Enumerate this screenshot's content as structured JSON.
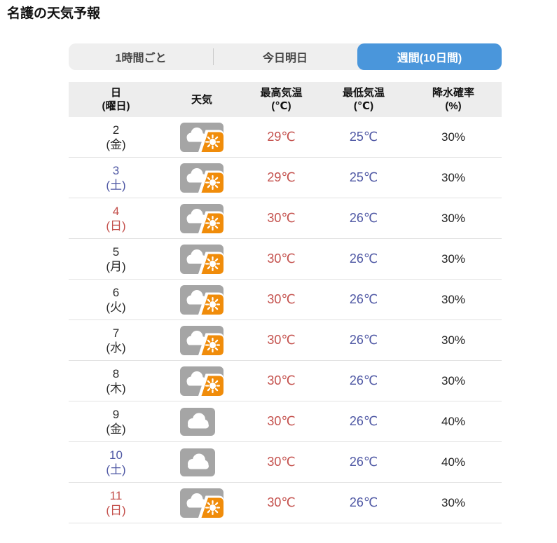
{
  "title": "名護の天気予報",
  "tabs": [
    {
      "label": "1時間ごと",
      "active": false
    },
    {
      "label": "今日明日",
      "active": false
    },
    {
      "label": "週間(10日間)",
      "active": true
    }
  ],
  "table": {
    "columns": [
      {
        "main": "日",
        "sub": "(曜日)"
      },
      {
        "main": "天気",
        "sub": ""
      },
      {
        "main": "最高気温",
        "sub": "(℃)"
      },
      {
        "main": "最低気温",
        "sub": "(℃)"
      },
      {
        "main": "降水確率",
        "sub": "(%)"
      }
    ],
    "rows": [
      {
        "date": "2",
        "weekday": "(金)",
        "day_color": "black",
        "weather_icon": "cloud-sun-icon",
        "high": "29℃",
        "low": "25℃",
        "precip": "30%"
      },
      {
        "date": "3",
        "weekday": "(土)",
        "day_color": "blue",
        "weather_icon": "cloud-sun-icon",
        "high": "29℃",
        "low": "25℃",
        "precip": "30%"
      },
      {
        "date": "4",
        "weekday": "(日)",
        "day_color": "red",
        "weather_icon": "cloud-sun-icon",
        "high": "30℃",
        "low": "26℃",
        "precip": "30%"
      },
      {
        "date": "5",
        "weekday": "(月)",
        "day_color": "black",
        "weather_icon": "cloud-sun-icon",
        "high": "30℃",
        "low": "26℃",
        "precip": "30%"
      },
      {
        "date": "6",
        "weekday": "(火)",
        "day_color": "black",
        "weather_icon": "cloud-sun-icon",
        "high": "30℃",
        "low": "26℃",
        "precip": "30%"
      },
      {
        "date": "7",
        "weekday": "(水)",
        "day_color": "black",
        "weather_icon": "cloud-sun-icon",
        "high": "30℃",
        "low": "26℃",
        "precip": "30%"
      },
      {
        "date": "8",
        "weekday": "(木)",
        "day_color": "black",
        "weather_icon": "cloud-sun-icon",
        "high": "30℃",
        "low": "26℃",
        "precip": "30%"
      },
      {
        "date": "9",
        "weekday": "(金)",
        "day_color": "black",
        "weather_icon": "cloud-icon",
        "high": "30℃",
        "low": "26℃",
        "precip": "40%"
      },
      {
        "date": "10",
        "weekday": "(土)",
        "day_color": "blue",
        "weather_icon": "cloud-icon",
        "high": "30℃",
        "low": "26℃",
        "precip": "40%"
      },
      {
        "date": "11",
        "weekday": "(日)",
        "day_color": "red",
        "weather_icon": "cloud-sun-icon",
        "high": "30℃",
        "low": "26℃",
        "precip": "30%"
      }
    ]
  },
  "palette": {
    "active_tab_bg": "#4a96db",
    "active_tab_text": "#ffffff",
    "red": "#c4514d",
    "blue": "#4f58a4",
    "black": "#2a2a2a",
    "icon_gray": "#a5a5a5",
    "icon_orange": "#f08c0a"
  }
}
